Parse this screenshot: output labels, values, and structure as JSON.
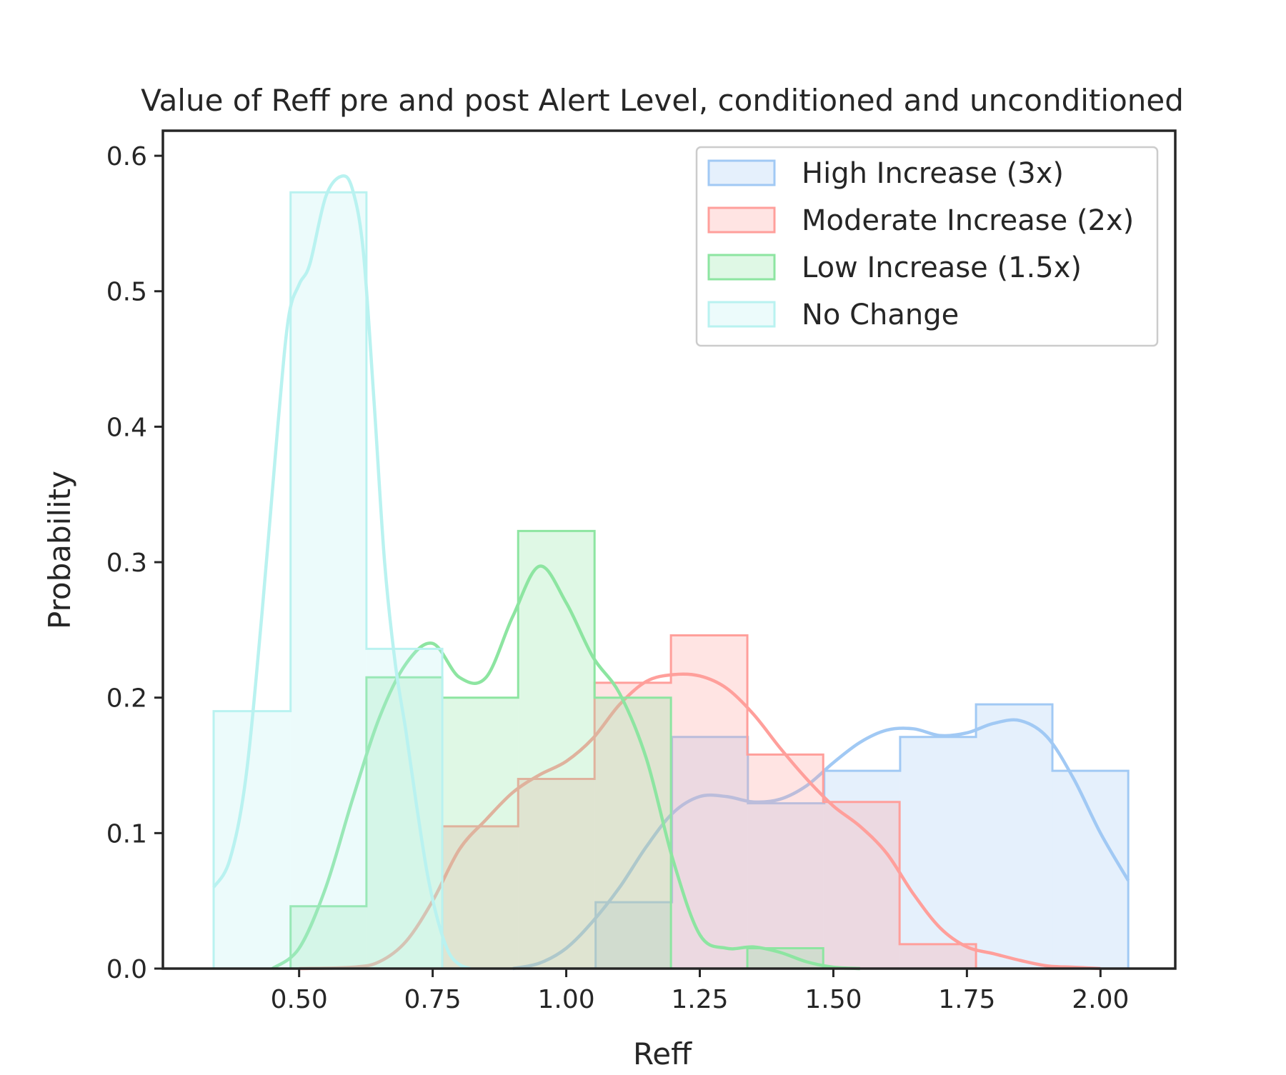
{
  "chart_data": {
    "type": "histogram",
    "title": "Value of Reff pre and post Alert Level, conditioned and unconditioned",
    "xlabel": "Reff",
    "ylabel": "Probability",
    "xlim": [
      0.245,
      2.14
    ],
    "ylim": [
      0,
      0.6185
    ],
    "xticks": [
      0.5,
      0.75,
      1.0,
      1.25,
      1.5,
      1.75,
      2.0
    ],
    "xtick_labels": [
      "0.50",
      "0.75",
      "1.00",
      "1.25",
      "1.50",
      "1.75",
      "2.00"
    ],
    "yticks": [
      0.0,
      0.1,
      0.2,
      0.3,
      0.4,
      0.5,
      0.6
    ],
    "ytick_labels": [
      "0.0",
      "0.1",
      "0.2",
      "0.3",
      "0.4",
      "0.5",
      "0.6"
    ],
    "grid": false,
    "legend_position": "top-right",
    "series": [
      {
        "name": "High Increase (3x)",
        "color": "#a1c9f4",
        "bins": [
          {
            "x0": 1.055,
            "x1": 1.198,
            "value": 0.049
          },
          {
            "x0": 1.198,
            "x1": 1.34,
            "value": 0.171
          },
          {
            "x0": 1.34,
            "x1": 1.483,
            "value": 0.122
          },
          {
            "x0": 1.483,
            "x1": 1.625,
            "value": 0.146
          },
          {
            "x0": 1.625,
            "x1": 1.767,
            "value": 0.171
          },
          {
            "x0": 1.767,
            "x1": 1.91,
            "value": 0.195
          },
          {
            "x0": 1.91,
            "x1": 2.052,
            "value": 0.146
          }
        ],
        "kde": {
          "x": [
            0.9,
            0.95,
            1.0,
            1.05,
            1.1,
            1.15,
            1.2,
            1.25,
            1.3,
            1.35,
            1.4,
            1.45,
            1.5,
            1.55,
            1.6,
            1.65,
            1.7,
            1.75,
            1.8,
            1.85,
            1.9,
            1.95,
            2.0,
            2.052
          ],
          "y": [
            0.0,
            0.004,
            0.015,
            0.035,
            0.06,
            0.09,
            0.115,
            0.127,
            0.127,
            0.123,
            0.125,
            0.135,
            0.152,
            0.167,
            0.176,
            0.177,
            0.172,
            0.174,
            0.181,
            0.183,
            0.171,
            0.14,
            0.1,
            0.065
          ]
        }
      },
      {
        "name": "Moderate Increase (2x)",
        "color": "#ff9f9b",
        "bins": [
          {
            "x0": 0.768,
            "x1": 0.91,
            "value": 0.105
          },
          {
            "x0": 0.91,
            "x1": 1.053,
            "value": 0.14
          },
          {
            "x0": 1.053,
            "x1": 1.196,
            "value": 0.211
          },
          {
            "x0": 1.196,
            "x1": 1.339,
            "value": 0.246
          },
          {
            "x0": 1.339,
            "x1": 1.481,
            "value": 0.158
          },
          {
            "x0": 1.481,
            "x1": 1.624,
            "value": 0.123
          },
          {
            "x0": 1.624,
            "x1": 1.767,
            "value": 0.018
          }
        ],
        "kde": {
          "x": [
            0.5,
            0.6,
            0.65,
            0.7,
            0.75,
            0.8,
            0.85,
            0.9,
            0.95,
            1.0,
            1.05,
            1.1,
            1.15,
            1.2,
            1.25,
            1.3,
            1.35,
            1.4,
            1.45,
            1.5,
            1.55,
            1.6,
            1.65,
            1.7,
            1.75,
            1.8,
            1.85,
            1.9,
            1.95,
            2.0
          ],
          "y": [
            0.0,
            0.001,
            0.005,
            0.02,
            0.05,
            0.088,
            0.11,
            0.13,
            0.143,
            0.153,
            0.17,
            0.195,
            0.212,
            0.217,
            0.216,
            0.207,
            0.188,
            0.163,
            0.14,
            0.12,
            0.105,
            0.085,
            0.055,
            0.03,
            0.016,
            0.011,
            0.006,
            0.002,
            0.001,
            0.0
          ]
        }
      },
      {
        "name": "Low Increase (1.5x)",
        "color": "#8de5a1",
        "bins": [
          {
            "x0": 0.484,
            "x1": 0.626,
            "value": 0.046
          },
          {
            "x0": 0.626,
            "x1": 0.768,
            "value": 0.215
          },
          {
            "x0": 0.768,
            "x1": 0.91,
            "value": 0.2
          },
          {
            "x0": 0.91,
            "x1": 1.053,
            "value": 0.323
          },
          {
            "x0": 1.053,
            "x1": 1.196,
            "value": 0.2
          },
          {
            "x0": 1.196,
            "x1": 1.339,
            "value": 0.0
          },
          {
            "x0": 1.339,
            "x1": 1.481,
            "value": 0.015
          }
        ],
        "kde": {
          "x": [
            0.45,
            0.5,
            0.55,
            0.6,
            0.65,
            0.7,
            0.75,
            0.8,
            0.85,
            0.9,
            0.95,
            1.0,
            1.05,
            1.1,
            1.15,
            1.2,
            1.25,
            1.3,
            1.35,
            1.4,
            1.45,
            1.5,
            1.55
          ],
          "y": [
            0.0,
            0.015,
            0.06,
            0.125,
            0.185,
            0.225,
            0.24,
            0.215,
            0.215,
            0.26,
            0.297,
            0.27,
            0.23,
            0.203,
            0.155,
            0.08,
            0.025,
            0.015,
            0.016,
            0.012,
            0.005,
            0.001,
            0.0
          ]
        }
      },
      {
        "name": "No Change",
        "color": "#b9f2f0",
        "bins": [
          {
            "x0": 0.34,
            "x1": 0.484,
            "value": 0.19
          },
          {
            "x0": 0.484,
            "x1": 0.626,
            "value": 0.573
          },
          {
            "x0": 0.626,
            "x1": 0.768,
            "value": 0.236
          }
        ],
        "kde": {
          "x": [
            0.34,
            0.37,
            0.4,
            0.43,
            0.46,
            0.48,
            0.5,
            0.52,
            0.55,
            0.58,
            0.6,
            0.62,
            0.64,
            0.66,
            0.68,
            0.7,
            0.72,
            0.74,
            0.76,
            0.78,
            0.8,
            0.82
          ],
          "y": [
            0.06,
            0.08,
            0.14,
            0.26,
            0.4,
            0.48,
            0.505,
            0.52,
            0.57,
            0.585,
            0.575,
            0.53,
            0.42,
            0.3,
            0.225,
            0.175,
            0.12,
            0.07,
            0.035,
            0.012,
            0.003,
            0.0
          ]
        }
      }
    ]
  }
}
